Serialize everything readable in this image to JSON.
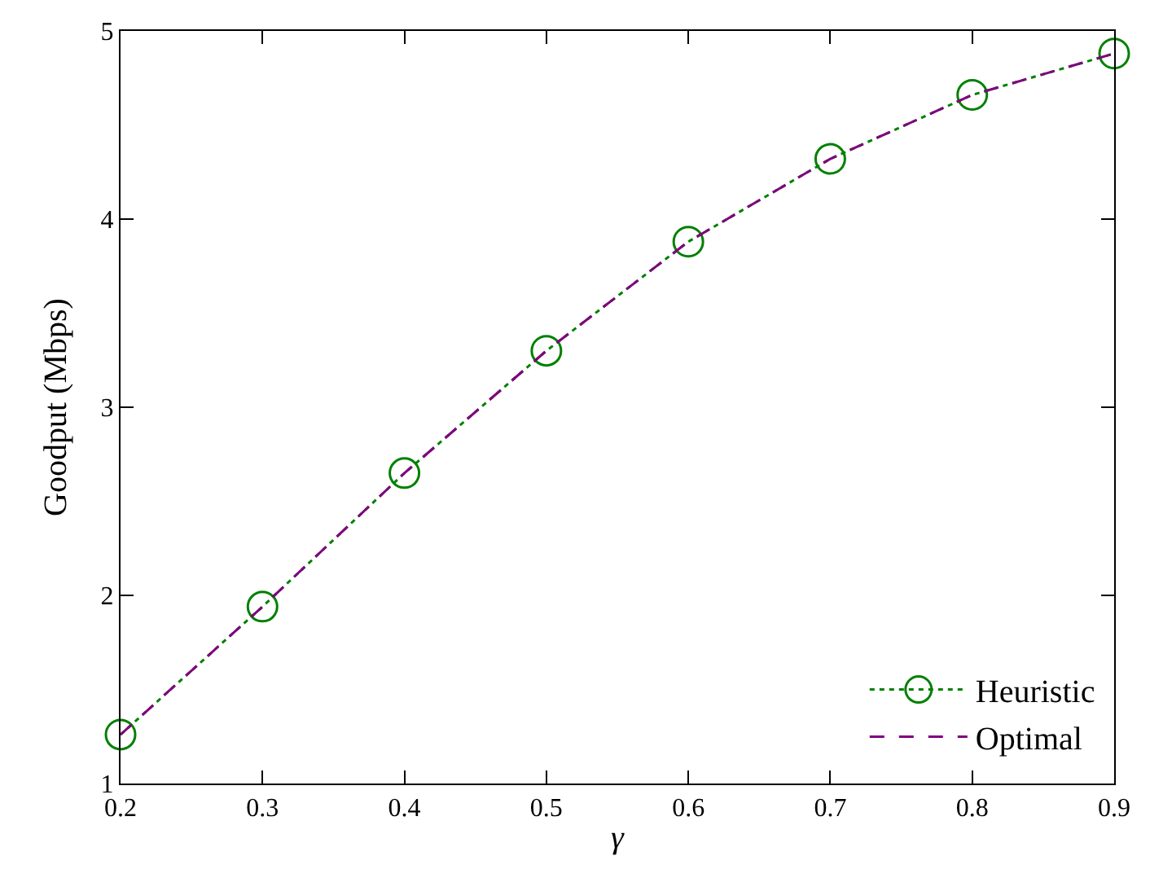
{
  "chart_data": {
    "type": "line",
    "xlabel": "γ",
    "ylabel": "Goodput (Mbps)",
    "x": [
      0.2,
      0.3,
      0.4,
      0.5,
      0.6,
      0.7,
      0.8,
      0.9
    ],
    "series": [
      {
        "name": "Heuristic",
        "color": "#008000",
        "values": [
          1.26,
          1.94,
          2.65,
          3.3,
          3.88,
          4.32,
          4.66,
          4.88
        ],
        "marker": "circle",
        "line_style": "dotted"
      },
      {
        "name": "Optimal",
        "color": "#800080",
        "values": [
          1.26,
          1.94,
          2.65,
          3.3,
          3.88,
          4.32,
          4.66,
          4.88
        ],
        "marker": "none",
        "line_style": "dashed"
      }
    ],
    "xlim": [
      0.2,
      0.9
    ],
    "xticks": [
      0.2,
      0.3,
      0.4,
      0.5,
      0.6,
      0.7,
      0.8,
      0.9
    ],
    "ylim": [
      1,
      5
    ],
    "yticks": [
      1,
      2,
      3,
      4,
      5
    ],
    "legend": "bottom right"
  }
}
